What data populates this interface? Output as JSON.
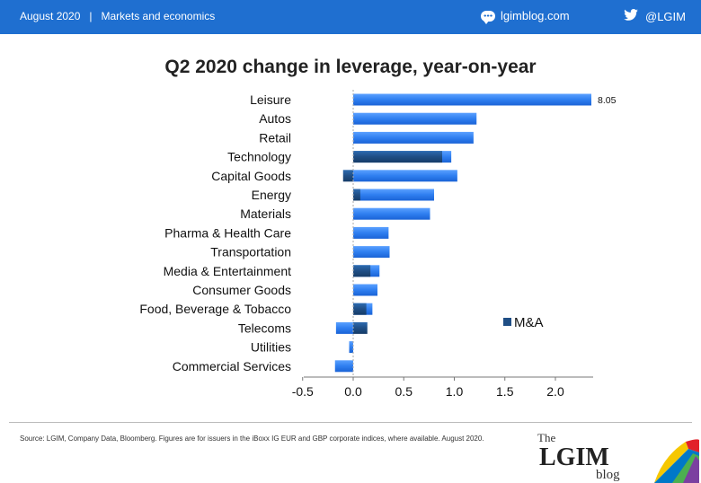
{
  "header": {
    "date": "August 2020",
    "separator": "|",
    "section": "Markets and economics",
    "site": "lgimblog.com",
    "twitter": "@LGIM",
    "colors": {
      "bar": "#1f6fd0",
      "text": "#ffffff"
    }
  },
  "chart_data": {
    "type": "bar",
    "orientation": "horizontal",
    "title": "Q2 2020 change in leverage, year-on-year",
    "categories": [
      "Leisure",
      "Autos",
      "Retail",
      "Technology",
      "Capital Goods",
      "Energy",
      "Materials",
      "Pharma & Health Care",
      "Transportation",
      "Media & Entertainment",
      "Consumer Goods",
      "Food, Beverage & Tobacco",
      "Telecoms",
      "Utilities",
      "Commercial Services"
    ],
    "series": [
      {
        "name": "",
        "color": "#2f7ff0",
        "values": [
          8.05,
          1.22,
          1.19,
          0.97,
          1.03,
          0.8,
          0.76,
          0.35,
          0.36,
          0.26,
          0.24,
          0.19,
          -0.17,
          -0.04,
          -0.18
        ]
      },
      {
        "name": "M&A",
        "color": "#1f4e85",
        "values": [
          0,
          0,
          0,
          0.88,
          -0.1,
          0.07,
          0,
          0,
          0,
          0.17,
          0,
          0.13,
          0.14,
          0,
          0
        ]
      }
    ],
    "data_labels": [
      {
        "category": "Leisure",
        "text": "8.05"
      }
    ],
    "xticks": [
      "-0.5",
      "0.0",
      "0.5",
      "1.0",
      "1.5",
      "2.0"
    ],
    "xlim": [
      -0.5,
      2.4
    ],
    "axis_break": true,
    "legend": {
      "entries": [
        "M&A"
      ],
      "placement": "inside-right"
    },
    "grid": false
  },
  "source": "Source: LGIM, Company Data, Bloomberg. Figures are for issuers in the iBoxx IG EUR and GBP corporate indices, where available. August 2020.",
  "logo": {
    "top": "The",
    "main": "LGIM",
    "bottom": "blog"
  }
}
